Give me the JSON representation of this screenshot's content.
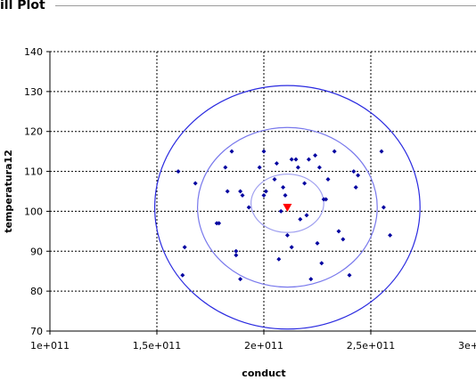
{
  "panel": {
    "title": "ill Plot"
  },
  "colors": {
    "ellipse": "#2a2ae0",
    "ellipse_light": "#8c8cf0",
    "point": "#0000a0",
    "centroid": "#ff0000",
    "grid": "#000000"
  },
  "chart_data": {
    "type": "scatter",
    "title": "ill Plot",
    "xlabel": "conduct",
    "ylabel": "temperatura12",
    "xlim": [
      100000000000,
      300000000000
    ],
    "ylim": [
      70,
      140
    ],
    "xticks": [
      100000000000,
      150000000000,
      200000000000,
      250000000000,
      300000000000
    ],
    "xtick_labels": [
      "1e+011",
      "1,5e+011",
      "2e+011",
      "2,5e+011",
      "3e+011"
    ],
    "yticks": [
      70,
      80,
      90,
      100,
      110,
      120,
      130,
      140
    ],
    "ytick_labels": [
      "70",
      "80",
      "90",
      "100",
      "110",
      "120",
      "130",
      "140"
    ],
    "grid": true,
    "points": [
      {
        "x": 160000000000,
        "y": 110
      },
      {
        "x": 163000000000,
        "y": 91
      },
      {
        "x": 162000000000,
        "y": 84
      },
      {
        "x": 168000000000,
        "y": 107
      },
      {
        "x": 178000000000,
        "y": 97
      },
      {
        "x": 183000000000,
        "y": 105
      },
      {
        "x": 182000000000,
        "y": 111
      },
      {
        "x": 185000000000,
        "y": 115
      },
      {
        "x": 187000000000,
        "y": 90
      },
      {
        "x": 187000000000,
        "y": 89
      },
      {
        "x": 189000000000,
        "y": 83
      },
      {
        "x": 189000000000,
        "y": 105
      },
      {
        "x": 190000000000,
        "y": 104
      },
      {
        "x": 193000000000,
        "y": 101
      },
      {
        "x": 198000000000,
        "y": 111
      },
      {
        "x": 200000000000,
        "y": 115
      },
      {
        "x": 200000000000,
        "y": 104
      },
      {
        "x": 201000000000,
        "y": 105
      },
      {
        "x": 205000000000,
        "y": 108
      },
      {
        "x": 206000000000,
        "y": 112
      },
      {
        "x": 207000000000,
        "y": 88
      },
      {
        "x": 208000000000,
        "y": 100
      },
      {
        "x": 209000000000,
        "y": 106
      },
      {
        "x": 210000000000,
        "y": 104
      },
      {
        "x": 211000000000,
        "y": 94
      },
      {
        "x": 213000000000,
        "y": 91
      },
      {
        "x": 213000000000,
        "y": 113
      },
      {
        "x": 215000000000,
        "y": 113
      },
      {
        "x": 216000000000,
        "y": 111
      },
      {
        "x": 217000000000,
        "y": 98
      },
      {
        "x": 219000000000,
        "y": 107
      },
      {
        "x": 220000000000,
        "y": 99
      },
      {
        "x": 221000000000,
        "y": 113
      },
      {
        "x": 222000000000,
        "y": 83
      },
      {
        "x": 224000000000,
        "y": 114
      },
      {
        "x": 225000000000,
        "y": 92
      },
      {
        "x": 226000000000,
        "y": 111
      },
      {
        "x": 227000000000,
        "y": 87
      },
      {
        "x": 228000000000,
        "y": 103
      },
      {
        "x": 229000000000,
        "y": 103
      },
      {
        "x": 230000000000,
        "y": 108
      },
      {
        "x": 233000000000,
        "y": 115
      },
      {
        "x": 235000000000,
        "y": 95
      },
      {
        "x": 237000000000,
        "y": 93
      },
      {
        "x": 240000000000,
        "y": 84
      },
      {
        "x": 242000000000,
        "y": 110
      },
      {
        "x": 243000000000,
        "y": 106
      },
      {
        "x": 244000000000,
        "y": 109
      },
      {
        "x": 255000000000,
        "y": 115
      },
      {
        "x": 256000000000,
        "y": 101
      },
      {
        "x": 259000000000,
        "y": 94
      },
      {
        "x": 179000000000,
        "y": 97
      }
    ],
    "centroid": {
      "x": 211000000000,
      "y": 101
    },
    "ellipses": [
      {
        "cx": 211000000000,
        "cy": 102,
        "rx": 17000000000,
        "ry": 7.3,
        "color": "#a0a0f0"
      },
      {
        "cx": 211000000000,
        "cy": 101,
        "rx": 42000000000,
        "ry": 20,
        "color": "#7878ec"
      },
      {
        "cx": 211000000000,
        "cy": 101,
        "rx": 62000000000,
        "ry": 30.5,
        "color": "#2a2ae0"
      }
    ]
  }
}
